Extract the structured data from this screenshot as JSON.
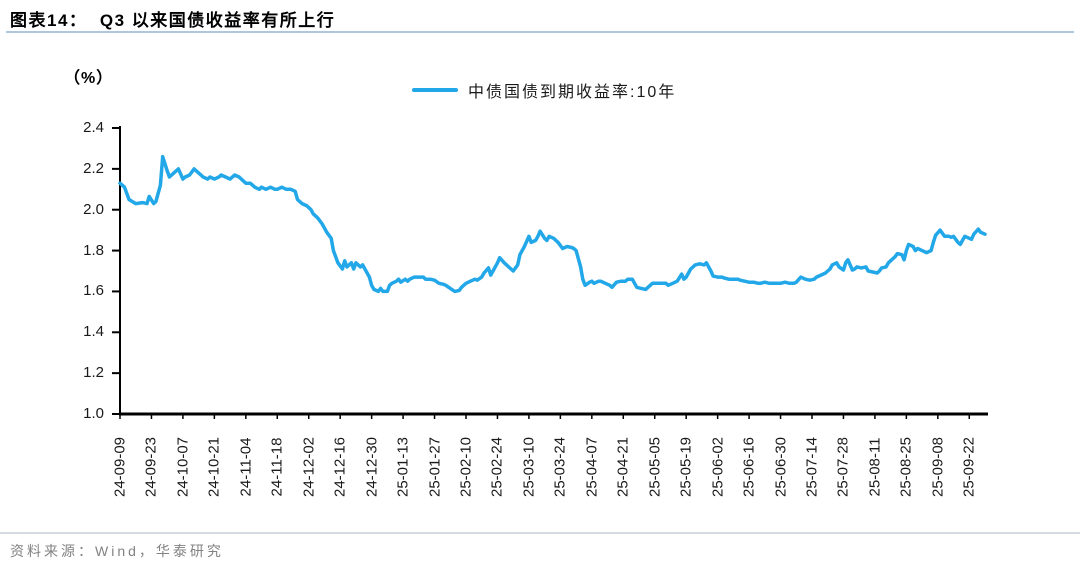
{
  "page": {
    "title": "图表14：  Q3 以来国债收益率有所上行",
    "source_note": "资料来源：Wind，华泰研究"
  },
  "chart": {
    "unit_label": "（%）"
  },
  "colors": {
    "accent_line": "#22A7E8",
    "title_rule": "#AFC7DD",
    "footer_rule": "#D5DBE0",
    "source_text": "#828282",
    "axis": "#000000"
  },
  "chart_data": {
    "type": "line",
    "title": "Q3 以来国债收益率有所上行",
    "ylabel": "（%）",
    "ylim": [
      1.0,
      2.4
    ],
    "y_ticks": [
      2.4,
      2.2,
      2.0,
      1.8,
      1.6,
      1.4,
      1.2,
      1.0
    ],
    "grid": false,
    "legend_position": "top-center",
    "x_start_date": "2024-09-09",
    "x_tick_interval_days": 14,
    "x_domain_days": 385,
    "x_tick_labels": [
      "24-09-09",
      "24-09-23",
      "24-10-07",
      "24-10-21",
      "24-11-04",
      "24-11-18",
      "24-12-02",
      "24-12-16",
      "24-12-30",
      "25-01-13",
      "25-01-27",
      "25-02-10",
      "25-02-24",
      "25-03-10",
      "25-03-24",
      "25-04-07",
      "25-04-21",
      "25-05-05",
      "25-05-19",
      "25-06-02",
      "25-06-16",
      "25-06-30",
      "25-07-14",
      "25-07-28",
      "25-08-11",
      "25-08-25",
      "25-09-08",
      "25-09-22"
    ],
    "series": [
      {
        "name": "中债国债到期收益率:10年",
        "color": "#22A7E8",
        "points_day_value": [
          [
            0,
            2.13
          ],
          [
            2,
            2.11
          ],
          [
            4,
            2.05
          ],
          [
            7,
            2.03
          ],
          [
            10,
            2.035
          ],
          [
            12,
            2.03
          ],
          [
            13,
            2.065
          ],
          [
            15,
            2.03
          ],
          [
            16,
            2.04
          ],
          [
            18,
            2.12
          ],
          [
            19,
            2.26
          ],
          [
            21,
            2.19
          ],
          [
            22,
            2.16
          ],
          [
            24,
            2.18
          ],
          [
            26,
            2.2
          ],
          [
            28,
            2.15
          ],
          [
            29,
            2.16
          ],
          [
            31,
            2.17
          ],
          [
            33,
            2.2
          ],
          [
            35,
            2.18
          ],
          [
            37,
            2.16
          ],
          [
            39,
            2.15
          ],
          [
            40,
            2.16
          ],
          [
            42,
            2.15
          ],
          [
            44,
            2.16
          ],
          [
            45,
            2.17
          ],
          [
            47,
            2.16
          ],
          [
            49,
            2.15
          ],
          [
            51,
            2.17
          ],
          [
            53,
            2.16
          ],
          [
            54,
            2.15
          ],
          [
            56,
            2.13
          ],
          [
            58,
            2.13
          ],
          [
            60,
            2.11
          ],
          [
            62,
            2.1
          ],
          [
            63,
            2.11
          ],
          [
            65,
            2.1
          ],
          [
            67,
            2.11
          ],
          [
            69,
            2.1
          ],
          [
            70,
            2.1
          ],
          [
            72,
            2.11
          ],
          [
            74,
            2.1
          ],
          [
            76,
            2.1
          ],
          [
            78,
            2.09
          ],
          [
            79,
            2.05
          ],
          [
            81,
            2.03
          ],
          [
            83,
            2.02
          ],
          [
            85,
            2.0
          ],
          [
            86,
            1.98
          ],
          [
            88,
            1.96
          ],
          [
            90,
            1.93
          ],
          [
            92,
            1.89
          ],
          [
            94,
            1.86
          ],
          [
            95,
            1.8
          ],
          [
            97,
            1.74
          ],
          [
            99,
            1.71
          ],
          [
            100,
            1.75
          ],
          [
            101,
            1.72
          ],
          [
            103,
            1.74
          ],
          [
            104,
            1.71
          ],
          [
            105,
            1.74
          ],
          [
            107,
            1.72
          ],
          [
            108,
            1.73
          ],
          [
            109,
            1.71
          ],
          [
            111,
            1.67
          ],
          [
            112,
            1.63
          ],
          [
            113,
            1.61
          ],
          [
            115,
            1.6
          ],
          [
            116,
            1.615
          ],
          [
            117,
            1.6
          ],
          [
            119,
            1.6
          ],
          [
            120,
            1.63
          ],
          [
            121,
            1.64
          ],
          [
            123,
            1.65
          ],
          [
            124,
            1.66
          ],
          [
            125,
            1.645
          ],
          [
            127,
            1.66
          ],
          [
            128,
            1.65
          ],
          [
            129,
            1.66
          ],
          [
            131,
            1.67
          ],
          [
            133,
            1.67
          ],
          [
            135,
            1.67
          ],
          [
            136,
            1.66
          ],
          [
            138,
            1.66
          ],
          [
            140,
            1.655
          ],
          [
            142,
            1.64
          ],
          [
            144,
            1.635
          ],
          [
            145,
            1.63
          ],
          [
            147,
            1.615
          ],
          [
            149,
            1.6
          ],
          [
            151,
            1.605
          ],
          [
            152,
            1.62
          ],
          [
            154,
            1.64
          ],
          [
            156,
            1.65
          ],
          [
            158,
            1.66
          ],
          [
            159,
            1.655
          ],
          [
            161,
            1.67
          ],
          [
            162,
            1.69
          ],
          [
            164,
            1.715
          ],
          [
            165,
            1.68
          ],
          [
            166,
            1.7
          ],
          [
            168,
            1.74
          ],
          [
            169,
            1.765
          ],
          [
            171,
            1.74
          ],
          [
            173,
            1.72
          ],
          [
            175,
            1.7
          ],
          [
            177,
            1.73
          ],
          [
            178,
            1.78
          ],
          [
            180,
            1.82
          ],
          [
            182,
            1.87
          ],
          [
            183,
            1.84
          ],
          [
            185,
            1.85
          ],
          [
            186,
            1.87
          ],
          [
            187,
            1.895
          ],
          [
            189,
            1.86
          ],
          [
            190,
            1.85
          ],
          [
            191,
            1.87
          ],
          [
            193,
            1.86
          ],
          [
            194,
            1.85
          ],
          [
            195,
            1.84
          ],
          [
            197,
            1.81
          ],
          [
            198,
            1.815
          ],
          [
            199,
            1.82
          ],
          [
            201,
            1.815
          ],
          [
            202,
            1.81
          ],
          [
            203,
            1.8
          ],
          [
            205,
            1.72
          ],
          [
            206,
            1.66
          ],
          [
            207,
            1.63
          ],
          [
            209,
            1.645
          ],
          [
            210,
            1.65
          ],
          [
            211,
            1.64
          ],
          [
            213,
            1.65
          ],
          [
            214,
            1.65
          ],
          [
            216,
            1.64
          ],
          [
            218,
            1.63
          ],
          [
            219,
            1.62
          ],
          [
            221,
            1.645
          ],
          [
            223,
            1.65
          ],
          [
            225,
            1.65
          ],
          [
            226,
            1.66
          ],
          [
            228,
            1.66
          ],
          [
            230,
            1.62
          ],
          [
            232,
            1.615
          ],
          [
            234,
            1.61
          ],
          [
            235,
            1.62
          ],
          [
            237,
            1.64
          ],
          [
            239,
            1.64
          ],
          [
            241,
            1.64
          ],
          [
            243,
            1.64
          ],
          [
            244,
            1.63
          ],
          [
            246,
            1.64
          ],
          [
            248,
            1.65
          ],
          [
            250,
            1.685
          ],
          [
            251,
            1.66
          ],
          [
            252,
            1.67
          ],
          [
            254,
            1.71
          ],
          [
            256,
            1.73
          ],
          [
            258,
            1.735
          ],
          [
            260,
            1.73
          ],
          [
            261,
            1.74
          ],
          [
            263,
            1.7
          ],
          [
            264,
            1.675
          ],
          [
            266,
            1.67
          ],
          [
            268,
            1.67
          ],
          [
            269,
            1.665
          ],
          [
            271,
            1.66
          ],
          [
            273,
            1.66
          ],
          [
            275,
            1.66
          ],
          [
            276,
            1.655
          ],
          [
            278,
            1.65
          ],
          [
            280,
            1.645
          ],
          [
            282,
            1.645
          ],
          [
            284,
            1.64
          ],
          [
            285,
            1.64
          ],
          [
            287,
            1.645
          ],
          [
            289,
            1.64
          ],
          [
            291,
            1.64
          ],
          [
            292,
            1.64
          ],
          [
            294,
            1.64
          ],
          [
            296,
            1.645
          ],
          [
            298,
            1.64
          ],
          [
            300,
            1.64
          ],
          [
            301,
            1.645
          ],
          [
            303,
            1.67
          ],
          [
            305,
            1.66
          ],
          [
            307,
            1.655
          ],
          [
            309,
            1.66
          ],
          [
            310,
            1.67
          ],
          [
            312,
            1.68
          ],
          [
            314,
            1.69
          ],
          [
            316,
            1.71
          ],
          [
            317,
            1.73
          ],
          [
            319,
            1.74
          ],
          [
            320,
            1.72
          ],
          [
            322,
            1.705
          ],
          [
            323,
            1.74
          ],
          [
            324,
            1.755
          ],
          [
            326,
            1.705
          ],
          [
            327,
            1.71
          ],
          [
            328,
            1.72
          ],
          [
            330,
            1.715
          ],
          [
            332,
            1.72
          ],
          [
            333,
            1.7
          ],
          [
            335,
            1.695
          ],
          [
            337,
            1.69
          ],
          [
            338,
            1.7
          ],
          [
            339,
            1.715
          ],
          [
            341,
            1.72
          ],
          [
            342,
            1.74
          ],
          [
            343,
            1.75
          ],
          [
            345,
            1.77
          ],
          [
            346,
            1.785
          ],
          [
            348,
            1.78
          ],
          [
            349,
            1.755
          ],
          [
            350,
            1.8
          ],
          [
            351,
            1.83
          ],
          [
            353,
            1.82
          ],
          [
            354,
            1.8
          ],
          [
            355,
            1.81
          ],
          [
            357,
            1.8
          ],
          [
            358,
            1.795
          ],
          [
            359,
            1.79
          ],
          [
            361,
            1.8
          ],
          [
            362,
            1.84
          ],
          [
            363,
            1.875
          ],
          [
            365,
            1.9
          ],
          [
            366,
            1.885
          ],
          [
            367,
            1.87
          ],
          [
            369,
            1.87
          ],
          [
            370,
            1.865
          ],
          [
            371,
            1.87
          ],
          [
            373,
            1.84
          ],
          [
            374,
            1.83
          ],
          [
            375,
            1.85
          ],
          [
            376,
            1.87
          ],
          [
            378,
            1.86
          ],
          [
            379,
            1.855
          ],
          [
            380,
            1.88
          ],
          [
            382,
            1.905
          ],
          [
            383,
            1.89
          ],
          [
            385,
            1.88
          ]
        ]
      }
    ]
  }
}
